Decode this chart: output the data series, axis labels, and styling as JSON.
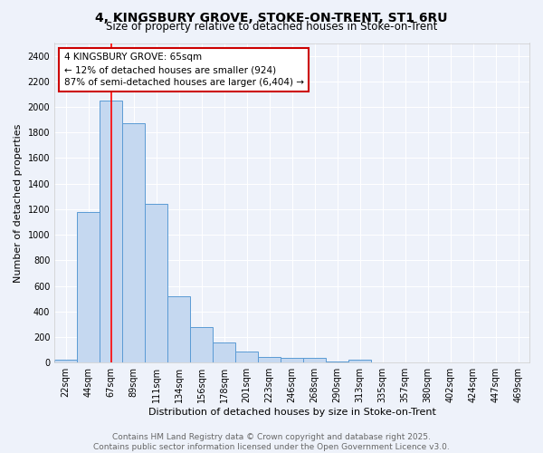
{
  "title1": "4, KINGSBURY GROVE, STOKE-ON-TRENT, ST1 6RU",
  "title2": "Size of property relative to detached houses in Stoke-on-Trent",
  "xlabel": "Distribution of detached houses by size in Stoke-on-Trent",
  "ylabel": "Number of detached properties",
  "bins": [
    "22sqm",
    "44sqm",
    "67sqm",
    "89sqm",
    "111sqm",
    "134sqm",
    "156sqm",
    "178sqm",
    "201sqm",
    "223sqm",
    "246sqm",
    "268sqm",
    "290sqm",
    "313sqm",
    "335sqm",
    "357sqm",
    "380sqm",
    "402sqm",
    "424sqm",
    "447sqm",
    "469sqm"
  ],
  "values": [
    25,
    1175,
    2050,
    1875,
    1245,
    520,
    275,
    155,
    90,
    45,
    35,
    35,
    10,
    20,
    5,
    5,
    5,
    5,
    5,
    5,
    0
  ],
  "bar_color": "#c5d8f0",
  "bar_edge_color": "#5b9bd5",
  "red_line_index": 2,
  "annotation_line1": "4 KINGSBURY GROVE: 65sqm",
  "annotation_line2": "← 12% of detached houses are smaller (924)",
  "annotation_line3": "87% of semi-detached houses are larger (6,404) →",
  "annotation_box_color": "#ffffff",
  "annotation_box_edge": "#cc0000",
  "ylim": [
    0,
    2500
  ],
  "yticks": [
    0,
    200,
    400,
    600,
    800,
    1000,
    1200,
    1400,
    1600,
    1800,
    2000,
    2200,
    2400
  ],
  "footer1": "Contains HM Land Registry data © Crown copyright and database right 2025.",
  "footer2": "Contains public sector information licensed under the Open Government Licence v3.0.",
  "background_color": "#eef2fa",
  "grid_color": "#ffffff",
  "title1_fontsize": 10,
  "title2_fontsize": 8.5,
  "ylabel_fontsize": 8,
  "xlabel_fontsize": 8,
  "tick_fontsize": 7,
  "annotation_fontsize": 7.5,
  "footer_fontsize": 6.5
}
